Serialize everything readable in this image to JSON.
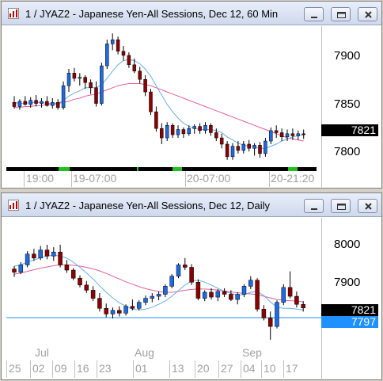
{
  "windows": [
    {
      "title": "1 / JYAZ2 - Japanese Yen-All Sessions, Dec 12, 60 Min",
      "price_labels": [
        "7900",
        "7850",
        "7800"
      ],
      "last_price": "7821",
      "time_labels": [
        "19:00",
        "19-07:00",
        "20-07:00",
        "20-21:20"
      ],
      "buttons": {
        "minimize": "minimize",
        "restore": "restore",
        "close": "close"
      }
    },
    {
      "title": "1 / JYAZ2 - Japanese Yen-All Sessions, Dec 12, Daily",
      "price_labels": [
        "8000",
        "7900"
      ],
      "last_price": "7821",
      "line_price": "7797",
      "month_labels": [
        "Jul",
        "Aug",
        "Sep"
      ],
      "date_labels": [
        "25",
        "02",
        "09",
        "16",
        "23",
        "01",
        "13",
        "20",
        "27",
        "04",
        "10",
        "17"
      ],
      "buttons": {
        "minimize": "minimize",
        "restore": "restore",
        "close": "close"
      }
    }
  ],
  "colors": {
    "up_candle": "#1e6ae0",
    "down_candle": "#8b0000",
    "ma_fast": "#6aaee8",
    "ma_slow": "#e0609a",
    "horizontal_line": "#1e90ff"
  },
  "chart_data": [
    {
      "type": "candlestick",
      "title": "1 / JYAZ2 - Japanese Yen-All Sessions, Dec 12, 60 Min",
      "ylim": [
        7790,
        7925
      ],
      "candles": [
        [
          7852,
          7858,
          7846,
          7848
        ],
        [
          7848,
          7855,
          7845,
          7853
        ],
        [
          7853,
          7858,
          7849,
          7850
        ],
        [
          7850,
          7857,
          7847,
          7854
        ],
        [
          7854,
          7859,
          7848,
          7851
        ],
        [
          7851,
          7856,
          7847,
          7853
        ],
        [
          7853,
          7858,
          7848,
          7849
        ],
        [
          7849,
          7856,
          7846,
          7852
        ],
        [
          7852,
          7855,
          7845,
          7847
        ],
        [
          7847,
          7872,
          7845,
          7868
        ],
        [
          7868,
          7884,
          7862,
          7880
        ],
        [
          7880,
          7885,
          7872,
          7875
        ],
        [
          7875,
          7880,
          7868,
          7876
        ],
        [
          7876,
          7878,
          7865,
          7871
        ],
        [
          7871,
          7874,
          7860,
          7866
        ],
        [
          7866,
          7872,
          7848,
          7851
        ],
        [
          7851,
          7890,
          7849,
          7887
        ],
        [
          7887,
          7912,
          7884,
          7908
        ],
        [
          7908,
          7918,
          7902,
          7912
        ],
        [
          7912,
          7915,
          7898,
          7901
        ],
        [
          7901,
          7906,
          7892,
          7897
        ],
        [
          7897,
          7900,
          7885,
          7888
        ],
        [
          7888,
          7894,
          7880,
          7882
        ],
        [
          7882,
          7886,
          7870,
          7874
        ],
        [
          7874,
          7878,
          7858,
          7862
        ],
        [
          7862,
          7865,
          7840,
          7843
        ],
        [
          7843,
          7848,
          7824,
          7827
        ],
        [
          7827,
          7832,
          7812,
          7818
        ],
        [
          7818,
          7833,
          7815,
          7830
        ],
        [
          7830,
          7832,
          7818,
          7821
        ],
        [
          7821,
          7830,
          7818,
          7826
        ],
        [
          7826,
          7828,
          7818,
          7822
        ],
        [
          7822,
          7830,
          7820,
          7827
        ],
        [
          7827,
          7831,
          7822,
          7829
        ],
        [
          7829,
          7832,
          7822,
          7825
        ],
        [
          7825,
          7833,
          7822,
          7830
        ],
        [
          7830,
          7832,
          7820,
          7823
        ],
        [
          7823,
          7827,
          7815,
          7818
        ],
        [
          7818,
          7822,
          7808,
          7812
        ],
        [
          7812,
          7815,
          7797,
          7800
        ],
        [
          7800,
          7813,
          7797,
          7810
        ],
        [
          7810,
          7815,
          7803,
          7806
        ],
        [
          7806,
          7815,
          7803,
          7812
        ],
        [
          7812,
          7816,
          7805,
          7808
        ],
        [
          7808,
          7813,
          7801,
          7811
        ],
        [
          7811,
          7814,
          7799,
          7803
        ],
        [
          7803,
          7818,
          7800,
          7815
        ],
        [
          7815,
          7828,
          7812,
          7825
        ],
        [
          7825,
          7830,
          7818,
          7823
        ],
        [
          7823,
          7827,
          7815,
          7819
        ],
        [
          7819,
          7826,
          7815,
          7822
        ],
        [
          7822,
          7827,
          7816,
          7820
        ],
        [
          7820,
          7825,
          7816,
          7822
        ],
        [
          7822,
          7826,
          7817,
          7821
        ]
      ],
      "ma_fast_values": [
        7852,
        7851,
        7851,
        7852,
        7852,
        7852,
        7851,
        7851,
        7851,
        7854,
        7858,
        7861,
        7863,
        7866,
        7866,
        7866,
        7869,
        7875,
        7882,
        7888,
        7892,
        7893,
        7892,
        7889,
        7884,
        7877,
        7868,
        7859,
        7850,
        7843,
        7837,
        7832,
        7829,
        7827,
        7826,
        7826,
        7826,
        7825,
        7823,
        7819,
        7816,
        7813,
        7811,
        7810,
        7809,
        7808,
        7808,
        7810,
        7812,
        7815,
        7817,
        7819,
        7820,
        7821
      ],
      "ma_slow_values": [
        7847,
        7847,
        7848,
        7848,
        7849,
        7849,
        7850,
        7850,
        7851,
        7852,
        7853,
        7855,
        7856,
        7858,
        7859,
        7860,
        7862,
        7864,
        7866,
        7868,
        7869,
        7870,
        7870,
        7870,
        7869,
        7868,
        7866,
        7864,
        7862,
        7860,
        7858,
        7856,
        7854,
        7852,
        7850,
        7848,
        7846,
        7844,
        7842,
        7840,
        7838,
        7836,
        7834,
        7832,
        7830,
        7828,
        7826,
        7824,
        7822,
        7820,
        7818,
        7817,
        7816,
        7815
      ]
    },
    {
      "type": "candlestick",
      "title": "1 / JYAZ2 - Japanese Yen-All Sessions, Dec 12, Daily",
      "ylim": [
        7730,
        8045
      ],
      "horizontal_line": 7797,
      "candles": [
        [
          7918,
          7925,
          7898,
          7910
        ],
        [
          7910,
          7935,
          7905,
          7928
        ],
        [
          7928,
          7962,
          7922,
          7955
        ],
        [
          7955,
          7968,
          7938,
          7945
        ],
        [
          7945,
          7975,
          7940,
          7965
        ],
        [
          7965,
          7978,
          7942,
          7950
        ],
        [
          7950,
          7972,
          7938,
          7960
        ],
        [
          7960,
          7978,
          7922,
          7928
        ],
        [
          7928,
          7940,
          7908,
          7915
        ],
        [
          7915,
          7920,
          7890,
          7895
        ],
        [
          7895,
          7902,
          7872,
          7878
        ],
        [
          7878,
          7888,
          7858,
          7865
        ],
        [
          7865,
          7875,
          7838,
          7845
        ],
        [
          7845,
          7858,
          7812,
          7820
        ],
        [
          7820,
          7832,
          7798,
          7806
        ],
        [
          7806,
          7822,
          7795,
          7815
        ],
        [
          7815,
          7825,
          7800,
          7808
        ],
        [
          7808,
          7830,
          7802,
          7825
        ],
        [
          7825,
          7842,
          7815,
          7820
        ],
        [
          7820,
          7840,
          7815,
          7835
        ],
        [
          7835,
          7852,
          7828,
          7845
        ],
        [
          7845,
          7858,
          7835,
          7850
        ],
        [
          7850,
          7862,
          7840,
          7855
        ],
        [
          7855,
          7880,
          7848,
          7875
        ],
        [
          7875,
          7905,
          7870,
          7900
        ],
        [
          7900,
          7932,
          7895,
          7928
        ],
        [
          7928,
          7945,
          7915,
          7922
        ],
        [
          7922,
          7930,
          7878,
          7885
        ],
        [
          7885,
          7892,
          7840,
          7845
        ],
        [
          7845,
          7865,
          7838,
          7860
        ],
        [
          7860,
          7870,
          7842,
          7848
        ],
        [
          7848,
          7868,
          7838,
          7862
        ],
        [
          7862,
          7870,
          7848,
          7855
        ],
        [
          7855,
          7865,
          7838,
          7842
        ],
        [
          7842,
          7860,
          7830,
          7855
        ],
        [
          7855,
          7880,
          7848,
          7875
        ],
        [
          7875,
          7900,
          7868,
          7890
        ],
        [
          7890,
          7895,
          7812,
          7818
        ],
        [
          7818,
          7828,
          7790,
          7796
        ],
        [
          7796,
          7812,
          7742,
          7775
        ],
        [
          7775,
          7840,
          7770,
          7835
        ],
        [
          7835,
          7880,
          7828,
          7872
        ],
        [
          7872,
          7912,
          7845,
          7850
        ],
        [
          7850,
          7862,
          7822,
          7830
        ],
        [
          7830,
          7838,
          7812,
          7821
        ]
      ],
      "ma_fast_values": [
        7925,
        7928,
        7935,
        7940,
        7946,
        7950,
        7952,
        7950,
        7945,
        7935,
        7922,
        7908,
        7893,
        7876,
        7860,
        7846,
        7834,
        7825,
        7818,
        7816,
        7818,
        7823,
        7830,
        7838,
        7850,
        7864,
        7878,
        7888,
        7890,
        7885,
        7878,
        7870,
        7862,
        7857,
        7853,
        7854,
        7860,
        7862,
        7852,
        7836,
        7823,
        7820,
        7820,
        7818,
        7816
      ],
      "ma_slow_values": [
        7905,
        7908,
        7912,
        7916,
        7920,
        7923,
        7926,
        7928,
        7928,
        7927,
        7925,
        7922,
        7918,
        7913,
        7907,
        7900,
        7893,
        7886,
        7880,
        7874,
        7869,
        7865,
        7862,
        7860,
        7860,
        7862,
        7865,
        7867,
        7868,
        7868,
        7867,
        7865,
        7863,
        7861,
        7859,
        7857,
        7856,
        7854,
        7850,
        7846,
        7842,
        7840,
        7839,
        7838,
        7836
      ]
    }
  ]
}
